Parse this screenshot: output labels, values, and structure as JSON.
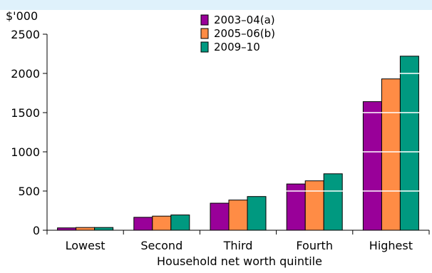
{
  "chart_data": {
    "type": "bar",
    "title": "",
    "unit_label": "$'000",
    "xlabel": "Household net worth quintile",
    "ylabel": "",
    "categories": [
      "Lowest",
      "Second",
      "Third",
      "Fourth",
      "Highest"
    ],
    "series": [
      {
        "name": "2003–04(a)",
        "color": "#990099",
        "values": [
          30,
          165,
          345,
          590,
          1640
        ]
      },
      {
        "name": "2005–06(b)",
        "color": "#ff8c45",
        "values": [
          35,
          180,
          385,
          630,
          1930
        ]
      },
      {
        "name": "2009–10",
        "color": "#009980",
        "values": [
          35,
          195,
          430,
          720,
          2220
        ]
      }
    ],
    "ylim": [
      0,
      2500
    ],
    "yticks": [
      0,
      500,
      1000,
      1500,
      2000,
      2500
    ],
    "gridlines": "white",
    "legend_position": "top-center"
  }
}
